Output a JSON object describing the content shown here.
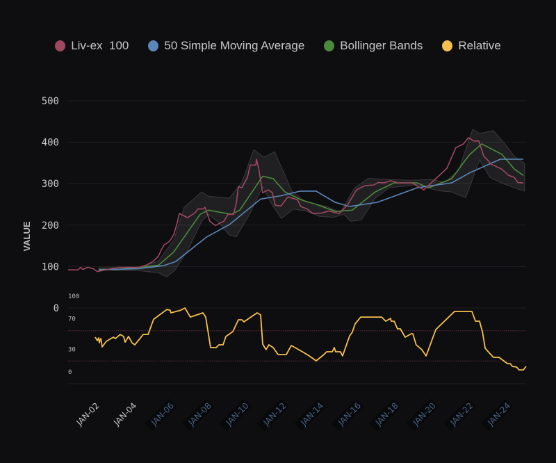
{
  "chart_data": {
    "type": "line",
    "ylabel": "VALUE",
    "ylim": [
      0,
      500
    ],
    "yticks": [
      0,
      100,
      200,
      300,
      400,
      500
    ],
    "xlim": [
      0.55,
      25.05
    ],
    "xticks": [
      {
        "day": 2,
        "label": "JAN-02",
        "style": "plain"
      },
      {
        "day": 4,
        "label": "JAN-04",
        "style": "plain"
      },
      {
        "day": 6,
        "label": "JAN-06",
        "style": "highlight"
      },
      {
        "day": 8,
        "label": "JAN-08",
        "style": "highlight"
      },
      {
        "day": 10,
        "label": "JAN-10",
        "style": "highlight"
      },
      {
        "day": 12,
        "label": "JAN-12",
        "style": "highlight"
      },
      {
        "day": 14,
        "label": "JAN-14",
        "style": "highlight"
      },
      {
        "day": 16,
        "label": "JAN-16",
        "style": "highlight"
      },
      {
        "day": 18,
        "label": "JAN-18",
        "style": "highlight"
      },
      {
        "day": 20,
        "label": "JAN-20",
        "style": "highlight"
      },
      {
        "day": 22,
        "label": "JAN-22",
        "style": "highlight"
      },
      {
        "day": 24,
        "label": "JAN-24",
        "style": "highlight"
      }
    ],
    "grid": true,
    "legend_placement": "top-center",
    "legend": [
      {
        "name": "Liv-ex  100",
        "color": "#a0485f"
      },
      {
        "name": "50 Simple Moving Average",
        "color": "#5b87b8"
      },
      {
        "name": "Bollinger Bands",
        "color": "#4b8a3e"
      },
      {
        "name": "Relative",
        "color": "#f5c04f"
      }
    ],
    "series": [
      {
        "name": "Liv-ex  100",
        "color": "#a0485f",
        "points": [
          [
            0.55,
            92
          ],
          [
            1.07,
            92
          ],
          [
            1.22,
            98
          ],
          [
            1.33,
            93
          ],
          [
            1.59,
            98
          ],
          [
            1.89,
            95
          ],
          [
            2.11,
            88
          ],
          [
            3.23,
            98
          ],
          [
            4.34,
            98
          ],
          [
            4.71,
            103
          ],
          [
            5.09,
            112
          ],
          [
            5.38,
            125
          ],
          [
            5.53,
            140
          ],
          [
            5.68,
            152
          ],
          [
            5.98,
            161
          ],
          [
            6.2,
            177
          ],
          [
            6.39,
            206
          ],
          [
            6.5,
            228
          ],
          [
            6.94,
            218
          ],
          [
            7.32,
            229
          ],
          [
            7.5,
            239
          ],
          [
            7.76,
            239
          ],
          [
            7.87,
            243
          ],
          [
            8.06,
            219
          ],
          [
            8.13,
            209
          ],
          [
            8.43,
            199
          ],
          [
            8.73,
            206
          ],
          [
            8.88,
            209
          ],
          [
            9.1,
            226
          ],
          [
            9.4,
            226
          ],
          [
            9.55,
            253
          ],
          [
            9.66,
            293
          ],
          [
            9.84,
            290
          ],
          [
            10.14,
            315
          ],
          [
            10.29,
            345
          ],
          [
            10.59,
            345
          ],
          [
            10.62,
            359
          ],
          [
            10.74,
            337
          ],
          [
            10.96,
            278
          ],
          [
            11.26,
            285
          ],
          [
            11.48,
            278
          ],
          [
            11.63,
            248
          ],
          [
            11.93,
            246
          ],
          [
            12.3,
            268
          ],
          [
            12.82,
            261
          ],
          [
            13.0,
            245
          ],
          [
            13.34,
            239
          ],
          [
            13.64,
            228
          ],
          [
            14.12,
            229
          ],
          [
            14.49,
            234
          ],
          [
            15.05,
            228
          ],
          [
            15.49,
            248
          ],
          [
            15.98,
            285
          ],
          [
            16.42,
            295
          ],
          [
            16.91,
            297
          ],
          [
            17.13,
            303
          ],
          [
            17.46,
            302
          ],
          [
            17.8,
            307
          ],
          [
            18.21,
            302
          ],
          [
            18.95,
            302
          ],
          [
            19.58,
            285
          ],
          [
            20.22,
            312
          ],
          [
            20.81,
            337
          ],
          [
            21.29,
            387
          ],
          [
            21.7,
            396
          ],
          [
            21.96,
            411
          ],
          [
            22.26,
            403
          ],
          [
            22.52,
            403
          ],
          [
            22.78,
            367
          ],
          [
            23.19,
            347
          ],
          [
            23.75,
            335
          ],
          [
            24.12,
            320
          ],
          [
            24.42,
            315
          ],
          [
            24.6,
            303
          ],
          [
            24.9,
            302
          ]
        ]
      },
      {
        "name": "50 Simple Moving Average",
        "color": "#5b87b8",
        "points": [
          [
            2.19,
            92
          ],
          [
            4.34,
            95
          ],
          [
            5.64,
            102
          ],
          [
            6.31,
            112
          ],
          [
            7.95,
            171
          ],
          [
            9.17,
            201
          ],
          [
            10.85,
            263
          ],
          [
            11.96,
            271
          ],
          [
            12.97,
            282
          ],
          [
            13.82,
            282
          ],
          [
            14.83,
            255
          ],
          [
            15.61,
            245
          ],
          [
            17.09,
            255
          ],
          [
            19.21,
            290
          ],
          [
            21.07,
            302
          ],
          [
            22.07,
            327
          ],
          [
            23.67,
            359
          ],
          [
            24.9,
            359
          ]
        ]
      },
      {
        "name": "Bollinger Bands",
        "color": "#4b8a3e",
        "points": [
          [
            2.19,
            93
          ],
          [
            3.23,
            93
          ],
          [
            5.38,
            103
          ],
          [
            6.2,
            135
          ],
          [
            7.61,
            226
          ],
          [
            8.06,
            236
          ],
          [
            9.29,
            226
          ],
          [
            9.73,
            236
          ],
          [
            10.96,
            318
          ],
          [
            11.52,
            312
          ],
          [
            12.15,
            280
          ],
          [
            13.0,
            261
          ],
          [
            13.75,
            251
          ],
          [
            14.86,
            233
          ],
          [
            15.75,
            236
          ],
          [
            16.98,
            280
          ],
          [
            17.99,
            302
          ],
          [
            19.21,
            302
          ],
          [
            19.84,
            290
          ],
          [
            21.07,
            312
          ],
          [
            22.0,
            369
          ],
          [
            22.67,
            396
          ],
          [
            23.75,
            371
          ],
          [
            24.42,
            335
          ],
          [
            24.9,
            320
          ]
        ],
        "upper": [
          [
            2.19,
            97
          ],
          [
            4.34,
            98
          ],
          [
            5.38,
            113
          ],
          [
            6.2,
            164
          ],
          [
            6.76,
            243
          ],
          [
            7.69,
            280
          ],
          [
            8.06,
            270
          ],
          [
            9.17,
            265
          ],
          [
            9.84,
            303
          ],
          [
            10.48,
            382
          ],
          [
            11.03,
            364
          ],
          [
            11.59,
            377
          ],
          [
            11.96,
            340
          ],
          [
            12.52,
            282
          ],
          [
            13.26,
            256
          ],
          [
            14.38,
            245
          ],
          [
            15.12,
            231
          ],
          [
            15.87,
            290
          ],
          [
            16.61,
            313
          ],
          [
            17.72,
            310
          ],
          [
            18.84,
            308
          ],
          [
            19.96,
            310
          ],
          [
            20.7,
            303
          ],
          [
            21.44,
            332
          ],
          [
            21.81,
            382
          ],
          [
            22.19,
            431
          ],
          [
            22.56,
            421
          ],
          [
            23.3,
            428
          ],
          [
            23.86,
            399
          ],
          [
            24.42,
            366
          ],
          [
            24.97,
            349
          ]
        ],
        "lower": [
          [
            2.19,
            92
          ],
          [
            4.34,
            90
          ],
          [
            5.38,
            85
          ],
          [
            5.83,
            75
          ],
          [
            6.28,
            92
          ],
          [
            6.94,
            139
          ],
          [
            7.69,
            209
          ],
          [
            8.06,
            226
          ],
          [
            8.62,
            206
          ],
          [
            9.17,
            176
          ],
          [
            9.55,
            172
          ],
          [
            10.29,
            229
          ],
          [
            10.96,
            293
          ],
          [
            11.48,
            248
          ],
          [
            11.96,
            216
          ],
          [
            12.59,
            239
          ],
          [
            13.26,
            234
          ],
          [
            14.01,
            221
          ],
          [
            14.75,
            219
          ],
          [
            15.31,
            226
          ],
          [
            15.68,
            209
          ],
          [
            16.24,
            213
          ],
          [
            16.98,
            265
          ],
          [
            17.72,
            290
          ],
          [
            19.21,
            298
          ],
          [
            20.33,
            283
          ],
          [
            21.07,
            280
          ],
          [
            21.81,
            266
          ],
          [
            22.56,
            357
          ],
          [
            23.12,
            315
          ],
          [
            23.67,
            303
          ],
          [
            24.42,
            290
          ],
          [
            24.97,
            282
          ]
        ]
      }
    ],
    "relative_panel": {
      "name": "Relative",
      "color": "#f5c04f",
      "ylim": [
        0,
        100
      ],
      "yticks": [
        0,
        30,
        70,
        100
      ],
      "reference_lines": [
        30,
        70
      ],
      "reference_color": "#5b2f3e",
      "points": [
        [
          2.0,
          61.5
        ],
        [
          2.11,
          57
        ],
        [
          2.19,
          60.5
        ],
        [
          2.22,
          54
        ],
        [
          2.3,
          59.6
        ],
        [
          2.37,
          48.6
        ],
        [
          2.59,
          56
        ],
        [
          2.97,
          61.5
        ],
        [
          3.08,
          59.6
        ],
        [
          3.34,
          65
        ],
        [
          3.52,
          62.4
        ],
        [
          3.6,
          55
        ],
        [
          3.78,
          62.4
        ],
        [
          3.97,
          54
        ],
        [
          4.12,
          51.4
        ],
        [
          4.57,
          65
        ],
        [
          4.83,
          65
        ],
        [
          5.12,
          85
        ],
        [
          5.83,
          98
        ],
        [
          6.01,
          97
        ],
        [
          6.05,
          93.6
        ],
        [
          6.57,
          97
        ],
        [
          6.8,
          100
        ],
        [
          7.09,
          88
        ],
        [
          7.76,
          93.6
        ],
        [
          7.91,
          88
        ],
        [
          8.17,
          47.7
        ],
        [
          8.47,
          47.7
        ],
        [
          8.62,
          51.4
        ],
        [
          8.84,
          51.4
        ],
        [
          8.99,
          62.4
        ],
        [
          9.36,
          68.8
        ],
        [
          9.66,
          84.4
        ],
        [
          9.84,
          84.4
        ],
        [
          9.96,
          81.7
        ],
        [
          10.66,
          93.6
        ],
        [
          10.85,
          90.8
        ],
        [
          10.96,
          52.3
        ],
        [
          11.14,
          45
        ],
        [
          11.29,
          51.4
        ],
        [
          11.52,
          47.7
        ],
        [
          11.78,
          38.5
        ],
        [
          12.22,
          38.5
        ],
        [
          12.49,
          50.5
        ],
        [
          13.15,
          41.3
        ],
        [
          13.45,
          36.7
        ],
        [
          13.82,
          30.3
        ],
        [
          14.19,
          37.6
        ],
        [
          14.38,
          42.2
        ],
        [
          14.68,
          42.2
        ],
        [
          14.79,
          47.7
        ],
        [
          14.86,
          42.2
        ],
        [
          15.12,
          42.2
        ],
        [
          15.23,
          36.7
        ],
        [
          15.61,
          63.3
        ],
        [
          15.75,
          67.9
        ],
        [
          15.9,
          78.9
        ],
        [
          16.2,
          88
        ],
        [
          17.32,
          88
        ],
        [
          17.54,
          82.6
        ],
        [
          17.8,
          86.2
        ],
        [
          17.83,
          82.6
        ],
        [
          17.99,
          82.6
        ],
        [
          18.17,
          72.5
        ],
        [
          18.32,
          72.5
        ],
        [
          18.58,
          61.5
        ],
        [
          18.91,
          66
        ],
        [
          18.99,
          66
        ],
        [
          19.17,
          51.4
        ],
        [
          19.47,
          45
        ],
        [
          19.7,
          36.7
        ],
        [
          20.22,
          71.6
        ],
        [
          21.22,
          95.4
        ],
        [
          22.15,
          95.4
        ],
        [
          22.34,
          82.6
        ],
        [
          22.56,
          82.6
        ],
        [
          22.71,
          68.8
        ],
        [
          22.86,
          46.8
        ],
        [
          23.3,
          34.9
        ],
        [
          23.6,
          34.9
        ],
        [
          24.05,
          26.6
        ],
        [
          24.2,
          26.6
        ],
        [
          24.31,
          22.9
        ],
        [
          24.54,
          22
        ],
        [
          24.68,
          18.3
        ],
        [
          24.9,
          18.3
        ],
        [
          25.05,
          22.9
        ]
      ]
    }
  }
}
